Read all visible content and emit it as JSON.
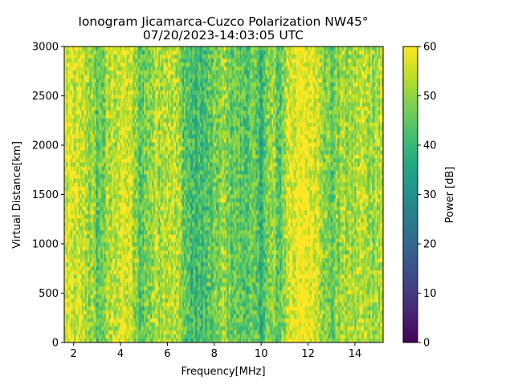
{
  "chart_data": {
    "type": "heatmap",
    "title": "Ionogram Jicamarca-Cuzco Polarization NW45°",
    "subtitle": "07/20/2023-14:03:05 UTC",
    "xlabel": "Frequency[MHz]",
    "ylabel": "Virtual Distance[km]",
    "xlim": [
      1.6,
      15.2
    ],
    "ylim": [
      0,
      3000
    ],
    "x_ticks": [
      2,
      4,
      6,
      8,
      10,
      12,
      14
    ],
    "y_ticks": [
      0,
      500,
      1000,
      1500,
      2000,
      2500,
      3000
    ],
    "colorbar": {
      "label": "Power [dB]",
      "range": [
        0,
        60
      ],
      "ticks": [
        0,
        10,
        20,
        30,
        40,
        50,
        60
      ],
      "colormap": "viridis"
    },
    "frequency_profile": {
      "description": "Approximate column-mean power (dB) vs frequency in MHz",
      "x": [
        1.6,
        2.0,
        2.4,
        2.8,
        3.0,
        3.3,
        3.6,
        4.0,
        4.4,
        4.8,
        5.2,
        5.6,
        6.0,
        6.4,
        6.8,
        7.2,
        7.6,
        8.0,
        8.4,
        8.8,
        9.2,
        9.6,
        10.0,
        10.4,
        10.8,
        11.2,
        11.6,
        12.0,
        12.4,
        12.8,
        13.0,
        13.4,
        13.8,
        14.2,
        14.6,
        15.2
      ],
      "values": [
        58,
        55,
        54,
        50,
        44,
        48,
        54,
        57,
        56,
        44,
        49,
        54,
        56,
        53,
        44,
        40,
        42,
        45,
        50,
        46,
        44,
        45,
        40,
        50,
        44,
        58,
        60,
        59,
        58,
        48,
        45,
        52,
        50,
        54,
        52,
        54
      ]
    },
    "grid": false
  }
}
